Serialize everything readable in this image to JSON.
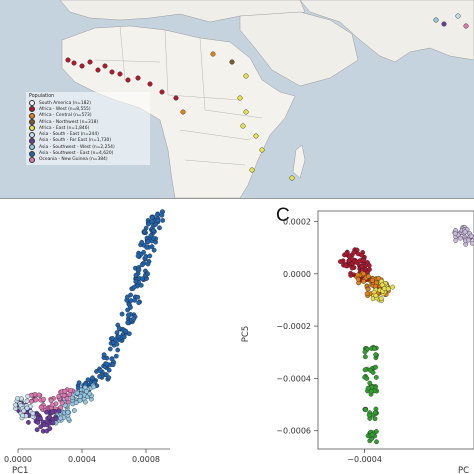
{
  "legend": {
    "title": "Population",
    "items": [
      {
        "label": "South America (n=182)",
        "color": "#f0f0f0"
      },
      {
        "label": "Africa - West (n=8,555)",
        "color": "#b2182b"
      },
      {
        "label": "Africa - Central (n=573)",
        "color": "#e08214"
      },
      {
        "label": "Africa - Northwest (n=318)",
        "color": "#7a5a2a"
      },
      {
        "label": "Africa - East (n=1,846)",
        "color": "#e8e04a"
      },
      {
        "label": "Asia - South - East (n=244)",
        "color": "#c2dcea"
      },
      {
        "label": "Asia - South - Far East (n=1,730)",
        "color": "#6a3d9a"
      },
      {
        "label": "Asia - Southwest - West (n=2,254)",
        "color": "#92c5de"
      },
      {
        "label": "Asia - Southwest - East (n=4,620)",
        "color": "#2166ac"
      },
      {
        "label": "Oceania - New Guinea (n=384)",
        "color": "#de77ae"
      }
    ]
  },
  "panel_c": {
    "letter": "C"
  },
  "chart_data": [
    {
      "type": "scatter",
      "title": "",
      "xlabel": "PC1",
      "ylabel": "",
      "x_ticks": [
        "0.0000",
        "0.0004",
        "0.0008"
      ],
      "xlim": [
        0.0,
        0.00095
      ],
      "ylim": [
        -0.001,
        0.0012
      ],
      "series": [
        {
          "color": "#2166ac",
          "x": [
            0.00041,
            0.00047,
            0.00053,
            0.00058,
            0.00062,
            0.00066,
            0.00069,
            0.00072,
            0.00075,
            0.00077,
            0.00079,
            0.00081,
            0.00083,
            0.00085,
            0.00088
          ],
          "y": [
            -0.00045,
            -0.0004,
            -0.0003,
            -0.00018,
            -5e-05,
            8e-05,
            0.00022,
            0.00035,
            0.0005,
            0.00062,
            0.00075,
            0.00087,
            0.00096,
            0.00105,
            0.00112
          ]
        },
        {
          "color": "#92c5de",
          "x": [
            0.00028,
            0.00033,
            0.00038,
            0.00043
          ],
          "y": [
            -0.0007,
            -0.0006,
            -0.00052,
            -0.00048
          ]
        },
        {
          "color": "#de77ae",
          "x": [
            0.00012,
            0.00018,
            0.00024,
            0.0003
          ],
          "y": [
            -0.00055,
            -0.0006,
            -0.00058,
            -0.00052
          ]
        },
        {
          "color": "#6a3d9a",
          "x": [
            4e-05,
            0.0001,
            0.00016,
            0.00022
          ],
          "y": [
            -0.00062,
            -0.00072,
            -0.00078,
            -0.0007
          ]
        },
        {
          "color": "#c2dcea",
          "x": [
            2e-05,
            6e-05
          ],
          "y": [
            -0.00058,
            -0.00066
          ]
        }
      ]
    },
    {
      "type": "scatter",
      "title": "",
      "xlabel": "PC",
      "ylabel": "PC5",
      "x_ticks": [
        "−0.0004"
      ],
      "y_ticks": [
        "0.0002",
        "0.0000",
        "−0.0002",
        "−0.0004",
        "−0.0006"
      ],
      "xlim": [
        -0.00063,
        0.00014
      ],
      "ylim": [
        -0.00067,
        0.00024
      ],
      "series": [
        {
          "color": "#b2182b",
          "x": [
            -0.00049,
            -0.00046,
            -0.00043,
            -0.0004,
            -0.00044,
            -0.00041
          ],
          "y": [
            5e-05,
            7e-05,
            6e-05,
            3e-05,
            1e-05,
            -1e-05
          ]
        },
        {
          "color": "#e08214",
          "x": [
            -0.00041,
            -0.00037,
            -0.00034,
            -0.00031,
            -0.00036
          ],
          "y": [
            -2e-05,
            -3e-05,
            -4e-05,
            -6e-05,
            -7e-05
          ]
        },
        {
          "color": "#e8e04a",
          "x": [
            -0.00033,
            -0.00029
          ],
          "y": [
            -8e-05,
            -5e-05
          ]
        },
        {
          "color": "#33a02c",
          "x": [
            -0.00037,
            -0.00037,
            -0.00036,
            -0.00037,
            -0.00036
          ],
          "y": [
            -0.0003,
            -0.00038,
            -0.00044,
            -0.00054,
            -0.00062
          ]
        },
        {
          "color": "#c9b8d9",
          "x": [
            7e-05,
            9e-05,
            0.00012
          ],
          "y": [
            0.00015,
            0.00016,
            0.00013
          ]
        }
      ]
    }
  ]
}
